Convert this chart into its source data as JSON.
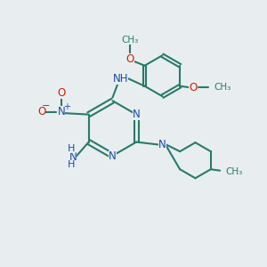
{
  "background_color": "#e8eef0",
  "bond_color": "#2a7a6a",
  "nitrogen_color": "#1a4aaa",
  "oxygen_color": "#cc2200",
  "carbon_color": "#2a7a6a",
  "figsize": [
    3.0,
    3.0
  ],
  "dpi": 100,
  "xlim": [
    0,
    10
  ],
  "ylim": [
    0,
    10
  ]
}
